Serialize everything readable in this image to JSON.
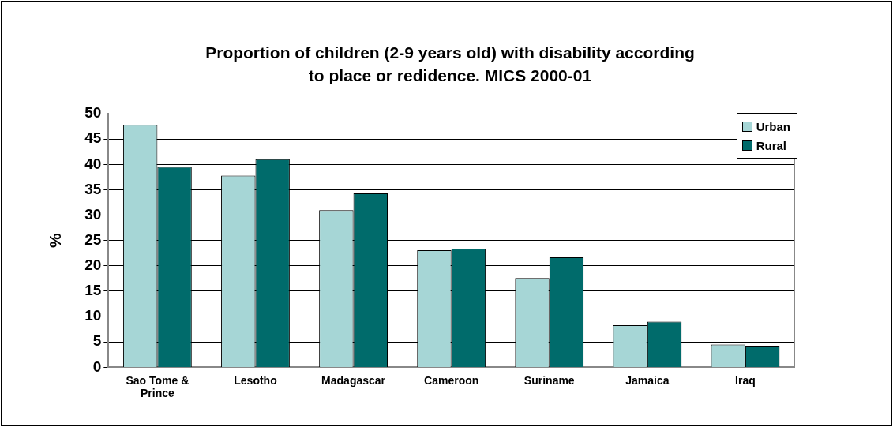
{
  "chart_data": {
    "type": "bar",
    "title": "Proportion of children (2-9 years old) with disability according to place or redidence. MICS 2000-01",
    "ylabel": "%",
    "categories": [
      "Sao Tome & Prince",
      "Lesotho",
      "Madagascar",
      "Cameroon",
      "Suriname",
      "Jamaica",
      "Iraq"
    ],
    "series": [
      {
        "name": "Urban",
        "color": "#a6d6d6",
        "values": [
          47.8,
          37.8,
          31,
          23.1,
          17.6,
          8.3,
          4.5
        ]
      },
      {
        "name": "Rural",
        "color": "#006b6b",
        "values": [
          39.5,
          41,
          34.3,
          23.4,
          21.7,
          9,
          4.1
        ]
      }
    ],
    "ylim": [
      0,
      50
    ],
    "yticks": [
      0,
      5,
      10,
      15,
      20,
      25,
      30,
      35,
      40,
      45,
      50
    ],
    "grid": "y",
    "legend": "top right"
  }
}
